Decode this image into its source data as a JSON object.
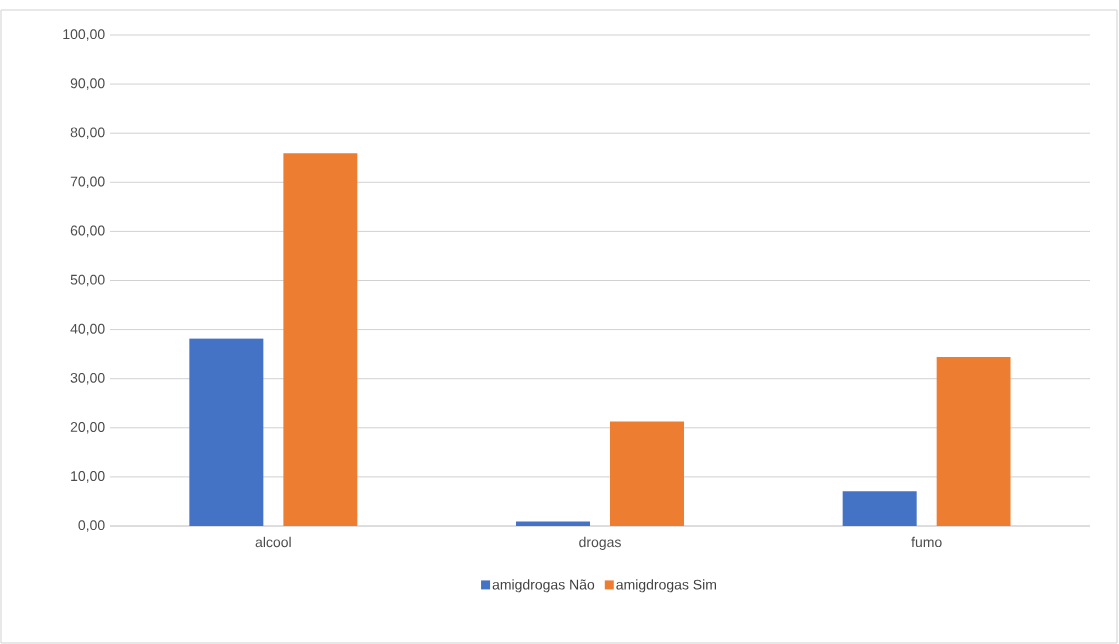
{
  "chart_data": {
    "type": "bar",
    "categories": [
      "alcool",
      "drogas",
      "fumo"
    ],
    "series": [
      {
        "name": "amigdrogas Não",
        "color": "#4472c4",
        "values": [
          38.2,
          0.9,
          7.1
        ]
      },
      {
        "name": "amigdrogas Sim",
        "color": "#ed7d31",
        "values": [
          75.9,
          21.3,
          34.4
        ]
      }
    ],
    "ylim": [
      0,
      100
    ],
    "yticks": [
      {
        "value": 0,
        "label": "0,00"
      },
      {
        "value": 10,
        "label": "10,00"
      },
      {
        "value": 20,
        "label": "20,00"
      },
      {
        "value": 30,
        "label": "30,00"
      },
      {
        "value": 40,
        "label": "40,00"
      },
      {
        "value": 50,
        "label": "50,00"
      },
      {
        "value": 60,
        "label": "60,00"
      },
      {
        "value": 70,
        "label": "70,00"
      },
      {
        "value": 80,
        "label": "80,00"
      },
      {
        "value": 90,
        "label": "90,00"
      },
      {
        "value": 100,
        "label": "100,00"
      }
    ],
    "grid": "y",
    "legend": "bottom"
  }
}
